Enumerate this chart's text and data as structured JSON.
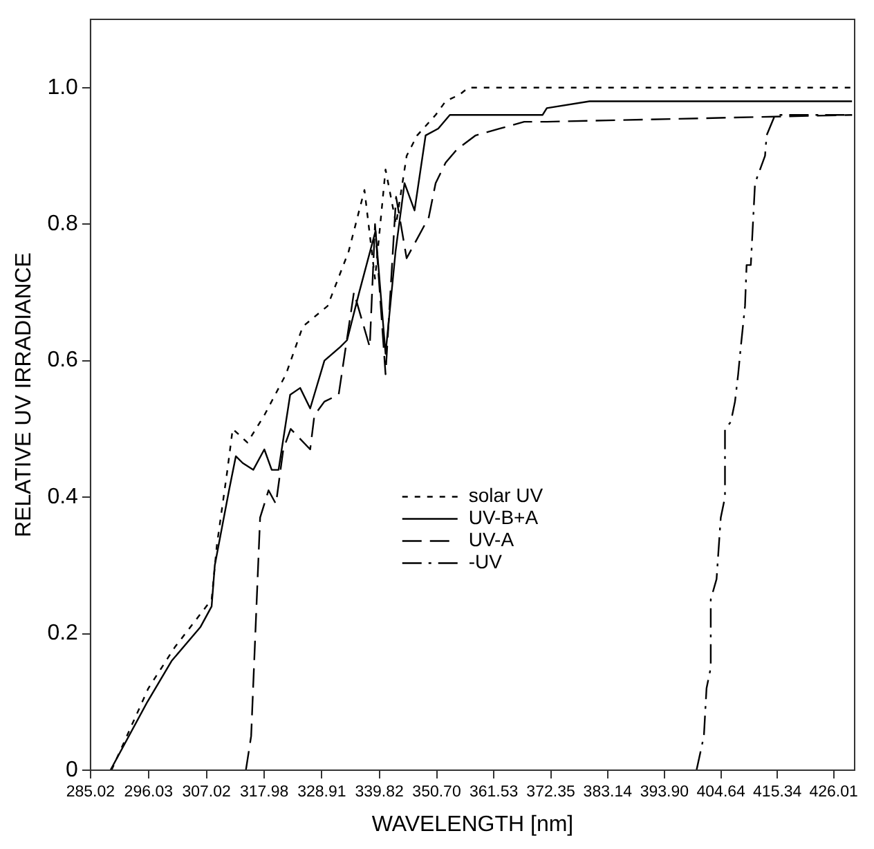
{
  "chart_data": {
    "type": "line",
    "xlabel": "WAVELENGTH [nm]",
    "ylabel": "RELATIVE UV IRRADIANCE",
    "xlim": [
      285.02,
      430
    ],
    "ylim": [
      0,
      1.1
    ],
    "xticks": [
      285.02,
      296.03,
      307.02,
      317.98,
      328.91,
      339.82,
      {
        "value": 350.7,
        "label": "350.70"
      },
      361.53,
      372.35,
      383.14,
      {
        "value": 393.9,
        "label": "393.90"
      },
      404.64,
      415.34,
      426.01
    ],
    "yticks": [
      {
        "value": 0,
        "label": "0"
      },
      0.2,
      0.4,
      0.6,
      0.8,
      {
        "value": 1,
        "label": "1.0"
      }
    ],
    "grid": false,
    "legend": "bottom",
    "marker": "none",
    "series": [
      {
        "name": "solar UV",
        "color": "#000000",
        "line_style": "dotted",
        "x": [
          289,
          296,
          301,
          306,
          308,
          309,
          311,
          312,
          314.8,
          318,
          322.1,
          325.3,
          330,
          334,
          337,
          339,
          341,
          343,
          345,
          347,
          350.5,
          352.4,
          355.1,
          356.7,
          429.5
        ],
        "values": [
          0,
          0.12,
          0.18,
          0.23,
          0.25,
          0.33,
          0.44,
          0.5,
          0.48,
          0.52,
          0.58,
          0.65,
          0.68,
          0.76,
          0.85,
          0.72,
          0.88,
          0.8,
          0.9,
          0.93,
          0.96,
          0.98,
          0.99,
          1,
          1
        ]
      },
      {
        "name": "UV-B+A",
        "color": "#000000",
        "line_style": "solid",
        "x": [
          288.8,
          295.8,
          300.4,
          305.9,
          308,
          308.6,
          311.3,
          312.6,
          313.9,
          315.9,
          318,
          319.4,
          320.7,
          322.9,
          324.8,
          326.7,
          329.4,
          332.4,
          333.7,
          336,
          339.1,
          341,
          342.9,
          344.6,
          346.5,
          348.6,
          351,
          353.2,
          359.4,
          360,
          370.8,
          371.6,
          379.7,
          429.5
        ],
        "values": [
          0,
          0.1,
          0.16,
          0.21,
          0.24,
          0.3,
          0.41,
          0.46,
          0.45,
          0.44,
          0.47,
          0.44,
          0.44,
          0.55,
          0.56,
          0.53,
          0.6,
          0.62,
          0.63,
          0.7,
          0.79,
          0.61,
          0.76,
          0.86,
          0.82,
          0.93,
          0.94,
          0.96,
          0.96,
          0.96,
          0.96,
          0.97,
          0.98,
          0.98
        ]
      },
      {
        "name": "UV-A",
        "color": "#000000",
        "line_style": "dashed",
        "x": [
          314.5,
          315.5,
          317.2,
          318.8,
          320.2,
          321.6,
          323,
          326.7,
          327.5,
          329.4,
          332.1,
          335,
          338,
          339,
          341,
          343,
          345,
          349.2,
          350.5,
          352.4,
          354.6,
          358.1,
          362.7,
          367.3,
          371.6,
          429.5
        ],
        "values": [
          0,
          0.05,
          0.37,
          0.41,
          0.39,
          0.47,
          0.5,
          0.47,
          0.52,
          0.54,
          0.55,
          0.7,
          0.62,
          0.8,
          0.58,
          0.84,
          0.75,
          0.81,
          0.86,
          0.89,
          0.91,
          0.93,
          0.94,
          0.95,
          0.95,
          0.96
        ]
      },
      {
        "name": "-UV",
        "color": "#000000",
        "line_style": "dashdot",
        "x": [
          400,
          401.4,
          401.9,
          402.7,
          402.7,
          403.8,
          404.6,
          405.4,
          405.4,
          406.5,
          407.3,
          407.9,
          408.4,
          409.2,
          409.5,
          410.3,
          411.1,
          413,
          413.3,
          414.9,
          429.5
        ],
        "values": [
          0,
          0.05,
          0.12,
          0.15,
          0.25,
          0.28,
          0.37,
          0.4,
          0.5,
          0.51,
          0.54,
          0.58,
          0.62,
          0.68,
          0.74,
          0.74,
          0.86,
          0.9,
          0.93,
          0.96,
          0.96
        ]
      }
    ]
  }
}
